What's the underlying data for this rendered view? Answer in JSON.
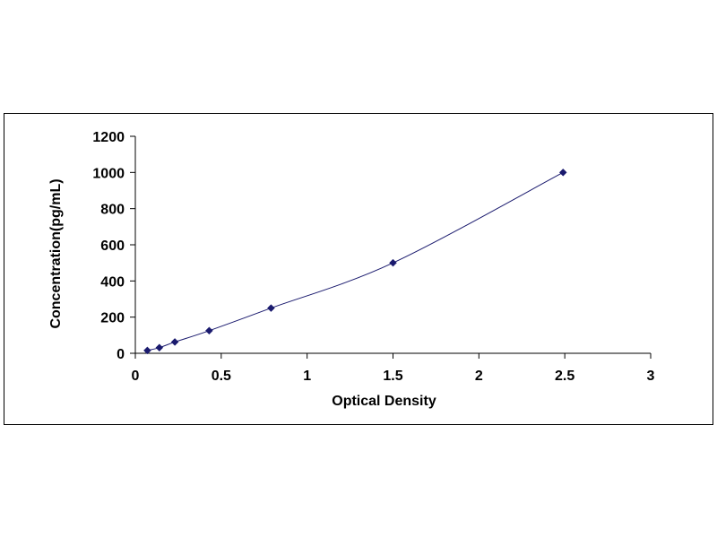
{
  "chart_data": {
    "type": "scatter",
    "title": "",
    "xlabel": "Optical Density",
    "ylabel": "Concentration(pg/mL)",
    "xlim": [
      0,
      3
    ],
    "ylim": [
      0,
      1200
    ],
    "x_ticks": [
      0,
      0.5,
      1,
      1.5,
      2,
      2.5,
      3
    ],
    "x_tick_labels": [
      "0",
      "0.5",
      "1",
      "1.5",
      "2",
      "2.5",
      "3"
    ],
    "y_ticks": [
      0,
      200,
      400,
      600,
      800,
      1000,
      1200
    ],
    "y_tick_labels": [
      "0",
      "200",
      "400",
      "600",
      "800",
      "1000",
      "1200"
    ],
    "grid": false,
    "legend": "none",
    "series": [
      {
        "x": [
          0.07,
          0.14,
          0.23,
          0.43,
          0.79,
          1.5,
          2.49
        ],
        "y": [
          15.6,
          31.2,
          62.5,
          125,
          250,
          500,
          1000
        ],
        "marker": "diamond",
        "color": "#1a1a6e",
        "line": "smooth"
      }
    ]
  }
}
